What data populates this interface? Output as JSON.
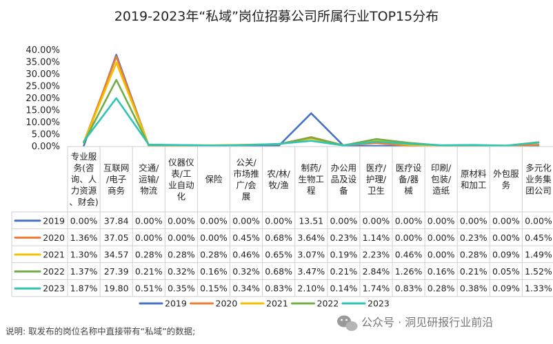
{
  "chart_data": {
    "type": "line",
    "title": "2019-2023年“私域”岗位招募公司所属行业TOP15分布",
    "y_ticks": [
      "40.00%",
      "35.00%",
      "30.00%",
      "25.00%",
      "20.00%",
      "15.00%",
      "10.00%",
      "5.00%",
      "0.00%"
    ],
    "ylim": [
      0,
      40
    ],
    "categories": [
      [
        "专业服",
        "务(咨",
        "询、人",
        "力资源",
        "、财会)"
      ],
      [
        "互联网",
        "/电子",
        "商务"
      ],
      [
        "交通/",
        "运输/",
        "物流"
      ],
      [
        "仪器仪",
        "表/工",
        "业自动",
        "化"
      ],
      [
        "保险"
      ],
      [
        "公关/",
        "市场推",
        "广/会",
        "展"
      ],
      [
        "农/林/",
        "牧/渔"
      ],
      [
        "制药/",
        "生物工",
        "程"
      ],
      [
        "办公用",
        "品及设",
        "备"
      ],
      [
        "医疗/",
        "护理/",
        "卫生"
      ],
      [
        "医疗设",
        "备/器",
        "械"
      ],
      [
        "印刷/",
        "包装/",
        "造纸"
      ],
      [
        "原材料",
        "和加工"
      ],
      [
        "外包服",
        "务"
      ],
      [
        "多元化",
        "业务集",
        "团公司"
      ]
    ],
    "series": [
      {
        "name": "2019",
        "color": "#4472c4",
        "values": [
          0.0,
          37.84,
          0.0,
          0.0,
          0.0,
          0.0,
          0.0,
          13.51,
          0.0,
          0.0,
          0.0,
          0.0,
          0.0,
          0.0,
          0.0
        ],
        "labels": [
          "0.00%",
          "37.84",
          "0.00%",
          "0.00%",
          "0.00%",
          "0.00%",
          "0.00%",
          "13.51",
          "0.00%",
          "0.00%",
          "0.00%",
          "0.00%",
          "0.00%",
          "0.00%",
          "0.00%"
        ]
      },
      {
        "name": "2020",
        "color": "#ed7d31",
        "values": [
          1.36,
          37.05,
          0.0,
          0.0,
          0.0,
          0.45,
          0.68,
          3.64,
          0.23,
          1.14,
          0.0,
          0.0,
          0.23,
          0.0,
          0.45
        ],
        "labels": [
          "1.36%",
          "37.05",
          "0.00%",
          "0.00%",
          "0.00%",
          "0.45%",
          "0.68%",
          "3.64%",
          "0.23%",
          "1.14%",
          "0.00%",
          "0.00%",
          "0.23%",
          "0.00%",
          "0.45%"
        ]
      },
      {
        "name": "2021",
        "color": "#f2c200",
        "values": [
          1.3,
          34.57,
          0.28,
          0.28,
          0.28,
          0.46,
          0.65,
          3.07,
          0.19,
          2.23,
          0.46,
          0.0,
          0.28,
          0.09,
          1.49
        ],
        "labels": [
          "1.30%",
          "34.57",
          "0.28%",
          "0.28%",
          "0.28%",
          "0.46%",
          "0.65%",
          "3.07%",
          "0.19%",
          "2.23%",
          "0.46%",
          "0.00%",
          "0.28%",
          "0.09%",
          "1.49%"
        ]
      },
      {
        "name": "2022",
        "color": "#70ad47",
        "values": [
          1.37,
          27.39,
          0.21,
          0.32,
          0.16,
          0.32,
          0.68,
          3.47,
          0.21,
          2.84,
          1.26,
          0.16,
          0.21,
          0.05,
          1.52
        ],
        "labels": [
          "1.37%",
          "27.39",
          "0.21%",
          "0.32%",
          "0.16%",
          "0.32%",
          "0.68%",
          "3.47%",
          "0.21%",
          "2.84%",
          "1.26%",
          "0.16%",
          "0.21%",
          "0.05%",
          "1.52%"
        ]
      },
      {
        "name": "2023",
        "color": "#2ec4b6",
        "values": [
          1.87,
          19.8,
          0.51,
          0.35,
          0.15,
          0.34,
          0.83,
          2.1,
          0.14,
          1.74,
          0.83,
          0.28,
          0.38,
          0.09,
          1.33
        ],
        "labels": [
          "1.87%",
          "19.80",
          "0.51%",
          "0.35%",
          "0.15%",
          "0.34%",
          "0.83%",
          "2.10%",
          "0.14%",
          "1.74%",
          "0.83%",
          "0.28%",
          "0.38%",
          "0.09%",
          "1.33%"
        ]
      }
    ],
    "legend_position": "bottom",
    "note": "说明: 取发布的岗位名称中直接带有“私域”的数据;",
    "watermark": "公众号 · 洞见研报行业前沿"
  }
}
